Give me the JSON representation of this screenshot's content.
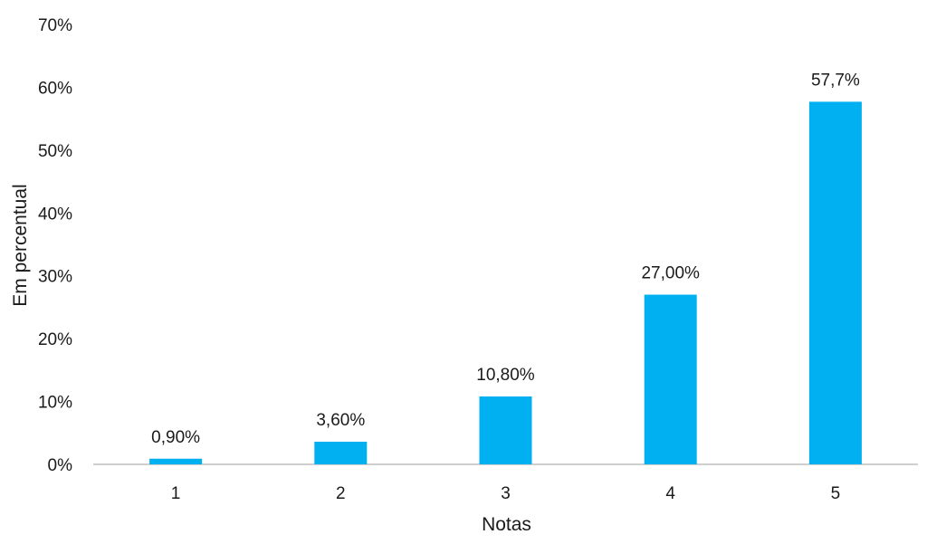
{
  "chart_data": {
    "type": "bar",
    "categories": [
      "1",
      "2",
      "3",
      "4",
      "5"
    ],
    "values": [
      0.9,
      3.6,
      10.8,
      27.0,
      57.7
    ],
    "data_labels": [
      "0,90%",
      "3,60%",
      "10,80%",
      "27,00%",
      "57,7%"
    ],
    "xlabel": "Notas",
    "ylabel": "Em percentual",
    "ylim": [
      0,
      70
    ],
    "yticks": [
      0,
      10,
      20,
      30,
      40,
      50,
      60,
      70
    ],
    "ytick_labels": [
      "0%",
      "10%",
      "20%",
      "30%",
      "40%",
      "50%",
      "60%",
      "70%"
    ],
    "grid": false,
    "legend": "none",
    "colors": {
      "bar": "#00b0f0",
      "axis": "#bfbfbf",
      "text": "#1a1a1a"
    }
  }
}
